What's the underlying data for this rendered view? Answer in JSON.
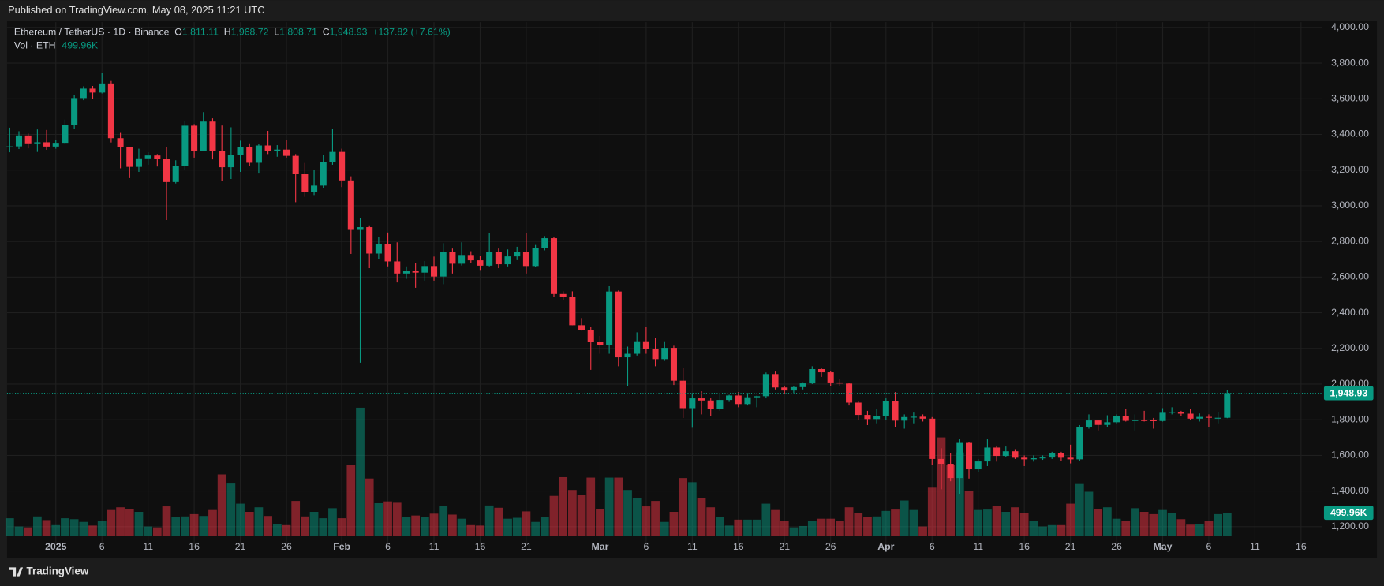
{
  "header": "Published on TradingView.com, May 08, 2025 11:21 UTC",
  "footer_brand": "TradingView",
  "chart_data": {
    "type": "candlestick",
    "symbol": "Ethereum / TetherUS · 1D · Binance",
    "legend": {
      "o_label": "O",
      "o": "1,811.11",
      "h_label": "H",
      "h": "1,968.72",
      "l_label": "L",
      "l": "1,808.71",
      "c_label": "C",
      "c": "1,948.93",
      "change": "+137.82 (+7.61%)"
    },
    "volume_label": "Vol · ETH",
    "volume_value_label": "499.96K",
    "last_price_label": "1,948.93",
    "up_color": "#089981",
    "down_color": "#f23645",
    "grid": true,
    "ylim": [
      1150,
      4030
    ],
    "yticks": [
      {
        "value": 1200,
        "label": "1,200.00"
      },
      {
        "value": 1400,
        "label": "1,400.00"
      },
      {
        "value": 1600,
        "label": "1,600.00"
      },
      {
        "value": 1800,
        "label": "1,800.00"
      },
      {
        "value": 2000,
        "label": "2,000.00"
      },
      {
        "value": 2200,
        "label": "2,200.00"
      },
      {
        "value": 2400,
        "label": "2,400.00"
      },
      {
        "value": 2600,
        "label": "2,600.00"
      },
      {
        "value": 2800,
        "label": "2,800.00"
      },
      {
        "value": 3000,
        "label": "3,000.00"
      },
      {
        "value": 3200,
        "label": "3,200.00"
      },
      {
        "value": 3400,
        "label": "3,400.00"
      },
      {
        "value": 3600,
        "label": "3,600.00"
      },
      {
        "value": 3800,
        "label": "3,800.00"
      },
      {
        "value": 4000,
        "label": "4,000.00"
      }
    ],
    "categories": [
      null,
      null,
      null,
      null,
      null,
      "2025",
      null,
      null,
      null,
      null,
      "6",
      null,
      null,
      null,
      null,
      "11",
      null,
      null,
      null,
      null,
      "16",
      null,
      null,
      null,
      null,
      "21",
      null,
      null,
      null,
      null,
      "26",
      null,
      null,
      null,
      null,
      null,
      "Feb",
      null,
      null,
      null,
      null,
      "6",
      null,
      null,
      null,
      null,
      "11",
      null,
      null,
      null,
      null,
      "16",
      null,
      null,
      null,
      null,
      "21",
      null,
      null,
      null,
      null,
      null,
      null,
      null,
      "Mar",
      null,
      null,
      null,
      null,
      "6",
      null,
      null,
      null,
      null,
      "11",
      null,
      null,
      null,
      null,
      "16",
      null,
      null,
      null,
      null,
      "21",
      null,
      null,
      null,
      null,
      "26",
      null,
      null,
      null,
      null,
      null,
      "Apr",
      null,
      null,
      null,
      null,
      "6",
      null,
      null,
      null,
      null,
      "11",
      null,
      null,
      null,
      null,
      "16",
      null,
      null,
      null,
      null,
      "21",
      null,
      null,
      null,
      null,
      "26",
      null,
      null,
      null,
      null,
      "May",
      null,
      null,
      null,
      null,
      "6",
      null,
      null,
      null,
      null,
      "11",
      null,
      null,
      null,
      null,
      "16",
      null,
      null
    ],
    "candles": [
      [
        3328,
        3438,
        3300,
        3333
      ],
      [
        3333,
        3418,
        3318,
        3394
      ],
      [
        3394,
        3405,
        3322,
        3350
      ],
      [
        3350,
        3428,
        3302,
        3356
      ],
      [
        3356,
        3425,
        3314,
        3332
      ],
      [
        3332,
        3370,
        3320,
        3353
      ],
      [
        3353,
        3483,
        3345,
        3451
      ],
      [
        3451,
        3620,
        3430,
        3604
      ],
      [
        3604,
        3670,
        3592,
        3657
      ],
      [
        3657,
        3672,
        3600,
        3635
      ],
      [
        3635,
        3745,
        3630,
        3686
      ],
      [
        3686,
        3700,
        3355,
        3379
      ],
      [
        3379,
        3413,
        3210,
        3327
      ],
      [
        3327,
        3330,
        3155,
        3218
      ],
      [
        3218,
        3320,
        3190,
        3266
      ],
      [
        3266,
        3300,
        3230,
        3282
      ],
      [
        3282,
        3290,
        3220,
        3264
      ],
      [
        3264,
        3330,
        2920,
        3133
      ],
      [
        3133,
        3255,
        3125,
        3225
      ],
      [
        3225,
        3475,
        3200,
        3449
      ],
      [
        3449,
        3458,
        3270,
        3309
      ],
      [
        3309,
        3525,
        3305,
        3472
      ],
      [
        3472,
        3490,
        3260,
        3306
      ],
      [
        3306,
        3450,
        3140,
        3216
      ],
      [
        3216,
        3440,
        3150,
        3285
      ],
      [
        3285,
        3365,
        3190,
        3328
      ],
      [
        3328,
        3350,
        3225,
        3241
      ],
      [
        3241,
        3348,
        3185,
        3338
      ],
      [
        3338,
        3420,
        3290,
        3306
      ],
      [
        3306,
        3340,
        3275,
        3315
      ],
      [
        3315,
        3370,
        3270,
        3280
      ],
      [
        3280,
        3290,
        3020,
        3180
      ],
      [
        3180,
        3240,
        3050,
        3076
      ],
      [
        3076,
        3200,
        3060,
        3113
      ],
      [
        3113,
        3285,
        3100,
        3245
      ],
      [
        3245,
        3430,
        3230,
        3302
      ],
      [
        3302,
        3320,
        3105,
        3142
      ],
      [
        3142,
        3165,
        2730,
        2869
      ],
      [
        2869,
        2930,
        2120,
        2880
      ],
      [
        2880,
        2890,
        2650,
        2732
      ],
      [
        2732,
        2825,
        2700,
        2786
      ],
      [
        2786,
        2850,
        2660,
        2688
      ],
      [
        2688,
        2795,
        2570,
        2620
      ],
      [
        2620,
        2660,
        2590,
        2633
      ],
      [
        2633,
        2680,
        2540,
        2625
      ],
      [
        2625,
        2690,
        2580,
        2662
      ],
      [
        2662,
        2715,
        2580,
        2603
      ],
      [
        2603,
        2790,
        2560,
        2740
      ],
      [
        2740,
        2760,
        2620,
        2675
      ],
      [
        2675,
        2795,
        2665,
        2724
      ],
      [
        2724,
        2745,
        2680,
        2694
      ],
      [
        2694,
        2720,
        2640,
        2664
      ],
      [
        2664,
        2845,
        2660,
        2743
      ],
      [
        2743,
        2760,
        2650,
        2672
      ],
      [
        2672,
        2755,
        2660,
        2716
      ],
      [
        2716,
        2770,
        2695,
        2740
      ],
      [
        2740,
        2845,
        2620,
        2662
      ],
      [
        2662,
        2780,
        2655,
        2765
      ],
      [
        2765,
        2830,
        2750,
        2818
      ],
      [
        2818,
        2825,
        2490,
        2505
      ],
      [
        2505,
        2520,
        2470,
        2489
      ],
      [
        2489,
        2520,
        2330,
        2330
      ],
      [
        2330,
        2370,
        2300,
        2304
      ],
      [
        2304,
        2320,
        2080,
        2237
      ],
      [
        2237,
        2270,
        2170,
        2217
      ],
      [
        2217,
        2550,
        2170,
        2519
      ],
      [
        2519,
        2525,
        2100,
        2150
      ],
      [
        2150,
        2210,
        1990,
        2170
      ],
      [
        2170,
        2290,
        2160,
        2240
      ],
      [
        2240,
        2320,
        2170,
        2197
      ],
      [
        2197,
        2260,
        2100,
        2140
      ],
      [
        2140,
        2240,
        2130,
        2203
      ],
      [
        2203,
        2215,
        1995,
        2019
      ],
      [
        2019,
        2090,
        1810,
        1865
      ],
      [
        1865,
        1950,
        1755,
        1920
      ],
      [
        1920,
        1960,
        1830,
        1908
      ],
      [
        1908,
        1920,
        1820,
        1862
      ],
      [
        1862,
        1945,
        1850,
        1911
      ],
      [
        1911,
        1940,
        1900,
        1936
      ],
      [
        1936,
        1955,
        1870,
        1888
      ],
      [
        1888,
        1950,
        1880,
        1926
      ],
      [
        1926,
        1935,
        1870,
        1932
      ],
      [
        1932,
        2065,
        1920,
        2056
      ],
      [
        2056,
        2070,
        1970,
        1981
      ],
      [
        1981,
        1990,
        1945,
        1964
      ],
      [
        1964,
        1990,
        1950,
        1983
      ],
      [
        1983,
        2010,
        1970,
        2004
      ],
      [
        2004,
        2100,
        2000,
        2084
      ],
      [
        2084,
        2090,
        2040,
        2066
      ],
      [
        2066,
        2075,
        1990,
        2009
      ],
      [
        2009,
        2030,
        1990,
        2003
      ],
      [
        2003,
        2005,
        1880,
        1896
      ],
      [
        1896,
        1905,
        1800,
        1827
      ],
      [
        1827,
        1850,
        1770,
        1804
      ],
      [
        1804,
        1860,
        1780,
        1822
      ],
      [
        1822,
        1920,
        1800,
        1906
      ],
      [
        1906,
        1955,
        1760,
        1795
      ],
      [
        1795,
        1830,
        1750,
        1815
      ],
      [
        1815,
        1840,
        1780,
        1817
      ],
      [
        1817,
        1830,
        1790,
        1806
      ],
      [
        1806,
        1815,
        1545,
        1580
      ],
      [
        1580,
        1640,
        1410,
        1553
      ],
      [
        1553,
        1615,
        1455,
        1473
      ],
      [
        1473,
        1690,
        1385,
        1670
      ],
      [
        1670,
        1675,
        1470,
        1522
      ],
      [
        1522,
        1580,
        1505,
        1566
      ],
      [
        1566,
        1690,
        1540,
        1644
      ],
      [
        1644,
        1655,
        1565,
        1597
      ],
      [
        1597,
        1650,
        1590,
        1623
      ],
      [
        1623,
        1635,
        1580,
        1587
      ],
      [
        1587,
        1600,
        1540,
        1578
      ],
      [
        1578,
        1600,
        1565,
        1584
      ],
      [
        1584,
        1600,
        1575,
        1588
      ],
      [
        1588,
        1620,
        1580,
        1614
      ],
      [
        1614,
        1620,
        1570,
        1587
      ],
      [
        1587,
        1660,
        1555,
        1578
      ],
      [
        1578,
        1770,
        1570,
        1757
      ],
      [
        1757,
        1830,
        1750,
        1796
      ],
      [
        1796,
        1800,
        1740,
        1771
      ],
      [
        1771,
        1825,
        1760,
        1786
      ],
      [
        1786,
        1830,
        1780,
        1820
      ],
      [
        1820,
        1860,
        1790,
        1794
      ],
      [
        1794,
        1830,
        1740,
        1798
      ],
      [
        1798,
        1850,
        1790,
        1797
      ],
      [
        1797,
        1810,
        1750,
        1793
      ],
      [
        1793,
        1865,
        1790,
        1839
      ],
      [
        1839,
        1870,
        1830,
        1844
      ],
      [
        1844,
        1850,
        1820,
        1834
      ],
      [
        1834,
        1860,
        1800,
        1806
      ],
      [
        1806,
        1835,
        1790,
        1816
      ],
      [
        1816,
        1830,
        1760,
        1811
      ],
      [
        1811,
        1845,
        1780,
        1811
      ],
      [
        1811.11,
        1968.72,
        1808.71,
        1948.93
      ],
      null,
      null,
      null,
      null,
      null,
      null,
      null,
      null,
      null,
      null
    ],
    "volume": [
      380,
      200,
      180,
      420,
      340,
      230,
      380,
      360,
      300,
      220,
      330,
      560,
      620,
      580,
      520,
      200,
      180,
      640,
      400,
      420,
      470,
      430,
      560,
      1340,
      1140,
      700,
      520,
      620,
      430,
      250,
      230,
      760,
      420,
      520,
      380,
      600,
      380,
      1540,
      2800,
      1250,
      710,
      750,
      720,
      400,
      440,
      410,
      480,
      650,
      460,
      370,
      230,
      220,
      660,
      610,
      370,
      390,
      530,
      300,
      400,
      870,
      1280,
      1000,
      890,
      1270,
      580,
      1270,
      1270,
      1000,
      820,
      640,
      760,
      300,
      520,
      1260,
      1170,
      820,
      620,
      400,
      220,
      350,
      350,
      350,
      700,
      560,
      330,
      180,
      210,
      320,
      370,
      370,
      320,
      620,
      500,
      400,
      420,
      540,
      570,
      770,
      560,
      200,
      1050,
      2150,
      1540,
      1820,
      980,
      560,
      570,
      650,
      520,
      620,
      500,
      320,
      200,
      230,
      230,
      700,
      1130,
      960,
      580,
      620,
      370,
      320,
      600,
      520,
      470,
      560,
      500,
      360,
      240,
      260,
      330,
      470,
      499.96,
      null,
      null,
      null,
      null,
      null,
      null,
      null,
      null,
      null,
      null
    ]
  }
}
